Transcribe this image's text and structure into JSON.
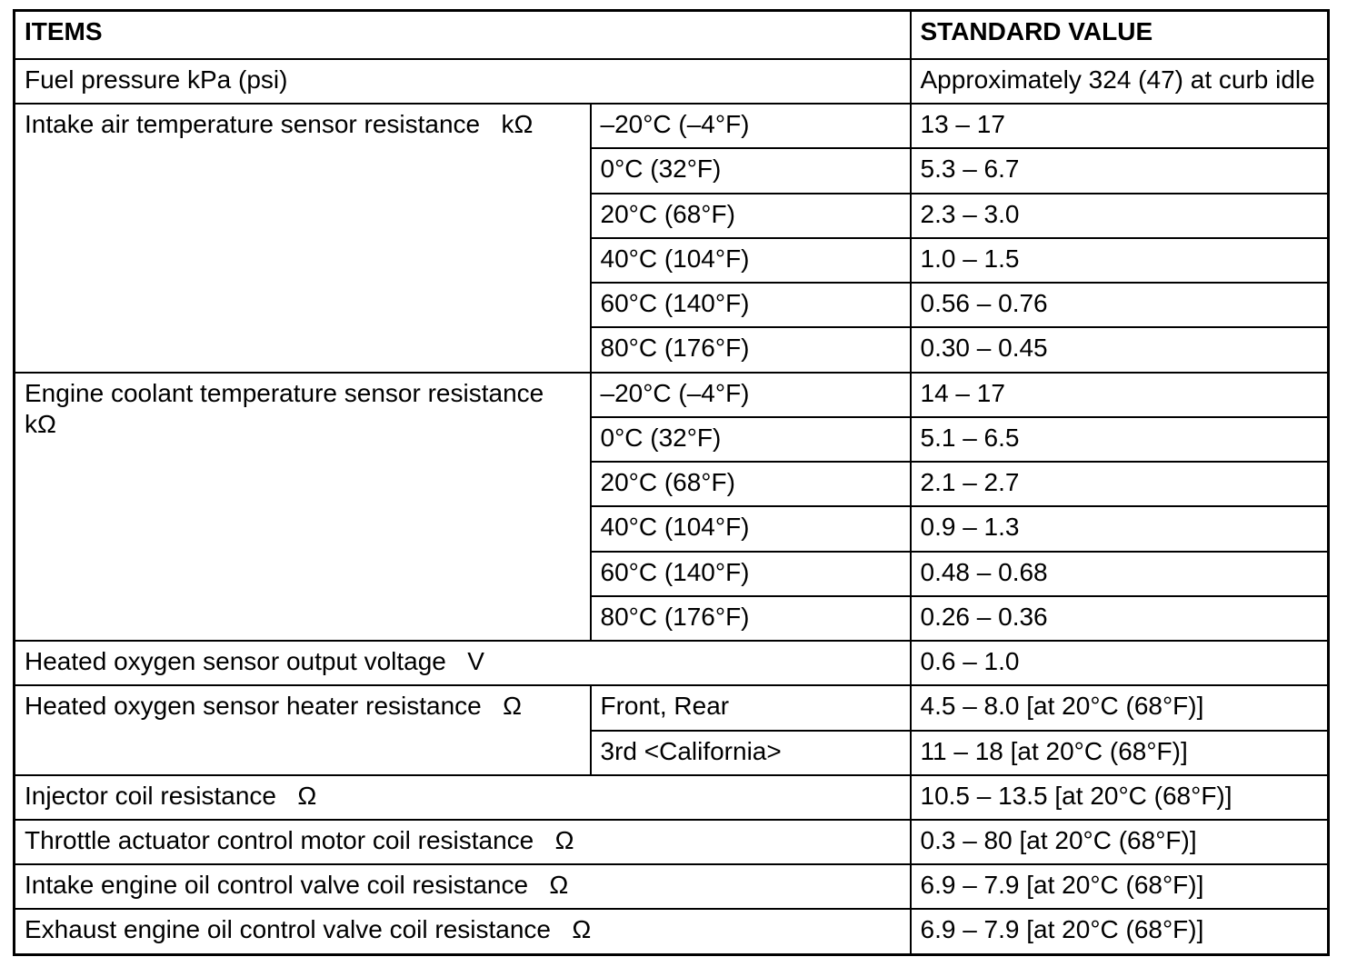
{
  "table": {
    "header": {
      "items_label": "ITEMS",
      "standard_value_label": "STANDARD VALUE"
    },
    "rows": [
      {
        "section": true,
        "cells": [
          {
            "text": "Fuel pressure kPa (psi)",
            "colspan": 2
          },
          {
            "text": "Approximately 324 (47) at curb idle"
          }
        ]
      },
      {
        "section": true,
        "cells": [
          {
            "text": "Intake air temperature sensor resistance   kΩ",
            "rowspan": 6
          },
          {
            "text": "–20°C (–4°F)"
          },
          {
            "text": "13 – 17"
          }
        ]
      },
      {
        "cells": [
          {
            "text": "0°C (32°F)"
          },
          {
            "text": "5.3 – 6.7"
          }
        ]
      },
      {
        "cells": [
          {
            "text": "20°C (68°F)"
          },
          {
            "text": "2.3 – 3.0"
          }
        ]
      },
      {
        "cells": [
          {
            "text": "40°C (104°F)"
          },
          {
            "text": "1.0 – 1.5"
          }
        ]
      },
      {
        "cells": [
          {
            "text": "60°C (140°F)"
          },
          {
            "text": "0.56 – 0.76"
          }
        ]
      },
      {
        "cells": [
          {
            "text": "80°C (176°F)"
          },
          {
            "text": "0.30 – 0.45"
          }
        ]
      },
      {
        "section": true,
        "cells": [
          {
            "text": "Engine coolant temperature sensor resistance   kΩ",
            "rowspan": 6
          },
          {
            "text": "–20°C (–4°F)"
          },
          {
            "text": "14 – 17"
          }
        ]
      },
      {
        "cells": [
          {
            "text": "0°C (32°F)"
          },
          {
            "text": "5.1 – 6.5"
          }
        ]
      },
      {
        "cells": [
          {
            "text": "20°C (68°F)"
          },
          {
            "text": "2.1 – 2.7"
          }
        ]
      },
      {
        "cells": [
          {
            "text": "40°C (104°F)"
          },
          {
            "text": "0.9 – 1.3"
          }
        ]
      },
      {
        "cells": [
          {
            "text": "60°C (140°F)"
          },
          {
            "text": "0.48 – 0.68"
          }
        ]
      },
      {
        "cells": [
          {
            "text": "80°C (176°F)"
          },
          {
            "text": "0.26 – 0.36"
          }
        ]
      },
      {
        "section": true,
        "cells": [
          {
            "text": "Heated oxygen sensor output voltage   V",
            "colspan": 2
          },
          {
            "text": "0.6 – 1.0"
          }
        ]
      },
      {
        "section": true,
        "cells": [
          {
            "text": "Heated oxygen sensor heater resistance   Ω",
            "rowspan": 2
          },
          {
            "text": "Front, Rear"
          },
          {
            "text": "4.5 – 8.0 [at 20°C (68°F)]"
          }
        ]
      },
      {
        "cells": [
          {
            "text": "3rd <California>"
          },
          {
            "text": "11 – 18 [at 20°C (68°F)]"
          }
        ]
      },
      {
        "section": true,
        "cells": [
          {
            "text": "Injector coil resistance   Ω",
            "colspan": 2
          },
          {
            "text": "10.5 – 13.5 [at 20°C (68°F)]"
          }
        ]
      },
      {
        "section": true,
        "cells": [
          {
            "text": "Throttle actuator control motor coil resistance   Ω",
            "colspan": 2
          },
          {
            "text": "0.3 – 80 [at 20°C (68°F)]"
          }
        ]
      },
      {
        "section": true,
        "cells": [
          {
            "text": "Intake engine oil control valve coil resistance   Ω",
            "colspan": 2
          },
          {
            "text": "6.9 – 7.9 [at 20°C (68°F)]"
          }
        ]
      },
      {
        "section": true,
        "cells": [
          {
            "text": "Exhaust engine oil control valve coil resistance   Ω",
            "colspan": 2
          },
          {
            "text": "6.9 – 7.9 [at 20°C (68°F)]"
          }
        ]
      }
    ]
  }
}
